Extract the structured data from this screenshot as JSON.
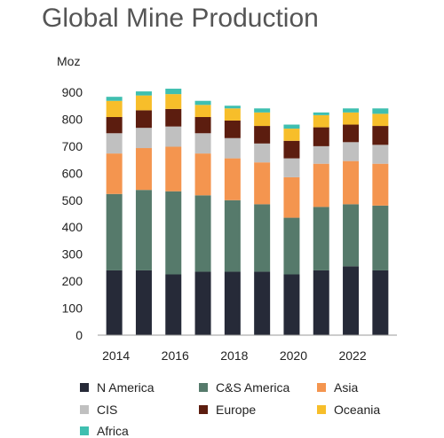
{
  "chart_data": {
    "type": "bar",
    "stacked": true,
    "title": "Global Mine Production",
    "ylabel": "Moz",
    "xlabel": "",
    "ylim": [
      0,
      900
    ],
    "yticks": [
      0,
      100,
      200,
      300,
      400,
      500,
      600,
      700,
      800,
      900
    ],
    "categories": [
      "2014",
      "2015",
      "2016",
      "2017",
      "2018",
      "2019",
      "2020",
      "2021",
      "2022",
      "2023"
    ],
    "xtick_labels": [
      "2014",
      "",
      "2016",
      "",
      "2018",
      "",
      "2020",
      "",
      "2022",
      ""
    ],
    "grid": false,
    "legend_position": "bottom",
    "series": [
      {
        "name": "N America",
        "color": "#262a38",
        "values": [
          240,
          240,
          225,
          235,
          235,
          235,
          225,
          240,
          255,
          240
        ]
      },
      {
        "name": "C&S America",
        "color": "#567a6b",
        "values": [
          283,
          298,
          308,
          283,
          265,
          250,
          210,
          235,
          230,
          240
        ]
      },
      {
        "name": "Asia",
        "color": "#f4954f",
        "values": [
          150,
          155,
          165,
          155,
          155,
          155,
          150,
          160,
          160,
          155
        ]
      },
      {
        "name": "CIS",
        "color": "#c0c0c0",
        "values": [
          75,
          75,
          75,
          75,
          75,
          70,
          70,
          65,
          70,
          70
        ]
      },
      {
        "name": "Europe",
        "color": "#5c1d0f",
        "values": [
          60,
          65,
          65,
          60,
          65,
          65,
          65,
          70,
          65,
          70
        ]
      },
      {
        "name": "Oceania",
        "color": "#f7be2a",
        "values": [
          60,
          55,
          55,
          45,
          45,
          50,
          45,
          45,
          45,
          45
        ]
      },
      {
        "name": "Africa",
        "color": "#3fbfb0",
        "values": [
          15,
          15,
          20,
          15,
          10,
          15,
          15,
          10,
          15,
          20
        ]
      }
    ]
  }
}
